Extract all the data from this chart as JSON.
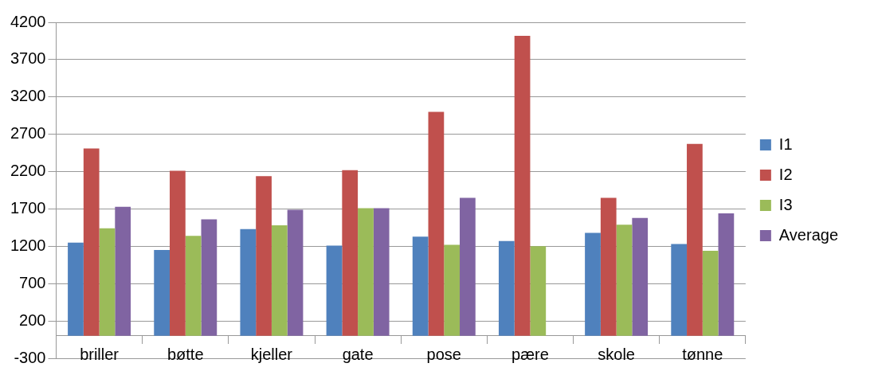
{
  "chart_data": {
    "type": "bar",
    "categories": [
      "briller",
      "bøtte",
      "kjeller",
      "gate",
      "pose",
      "pære",
      "skole",
      "tønne"
    ],
    "series": [
      {
        "name": "I1",
        "color": "#4f81bd",
        "values": [
          1250,
          1150,
          1430,
          1210,
          1330,
          1270,
          1380,
          1230
        ]
      },
      {
        "name": "I2",
        "color": "#c0504d",
        "values": [
          2510,
          2210,
          2140,
          2220,
          3000,
          4020,
          1850,
          2570
        ]
      },
      {
        "name": "I3",
        "color": "#9bbb59",
        "values": [
          1440,
          1340,
          1480,
          1710,
          1220,
          1200,
          1490,
          1140
        ]
      },
      {
        "name": "Average",
        "color": "#8064a2",
        "values": [
          1730,
          1560,
          1690,
          1710,
          1850,
          null,
          1580,
          1640
        ]
      }
    ],
    "ylim": [
      -300,
      4200
    ],
    "yticks": [
      -300,
      200,
      700,
      1200,
      1700,
      2200,
      2700,
      3200,
      3700,
      4200
    ],
    "grid": "y",
    "legend": "right"
  }
}
